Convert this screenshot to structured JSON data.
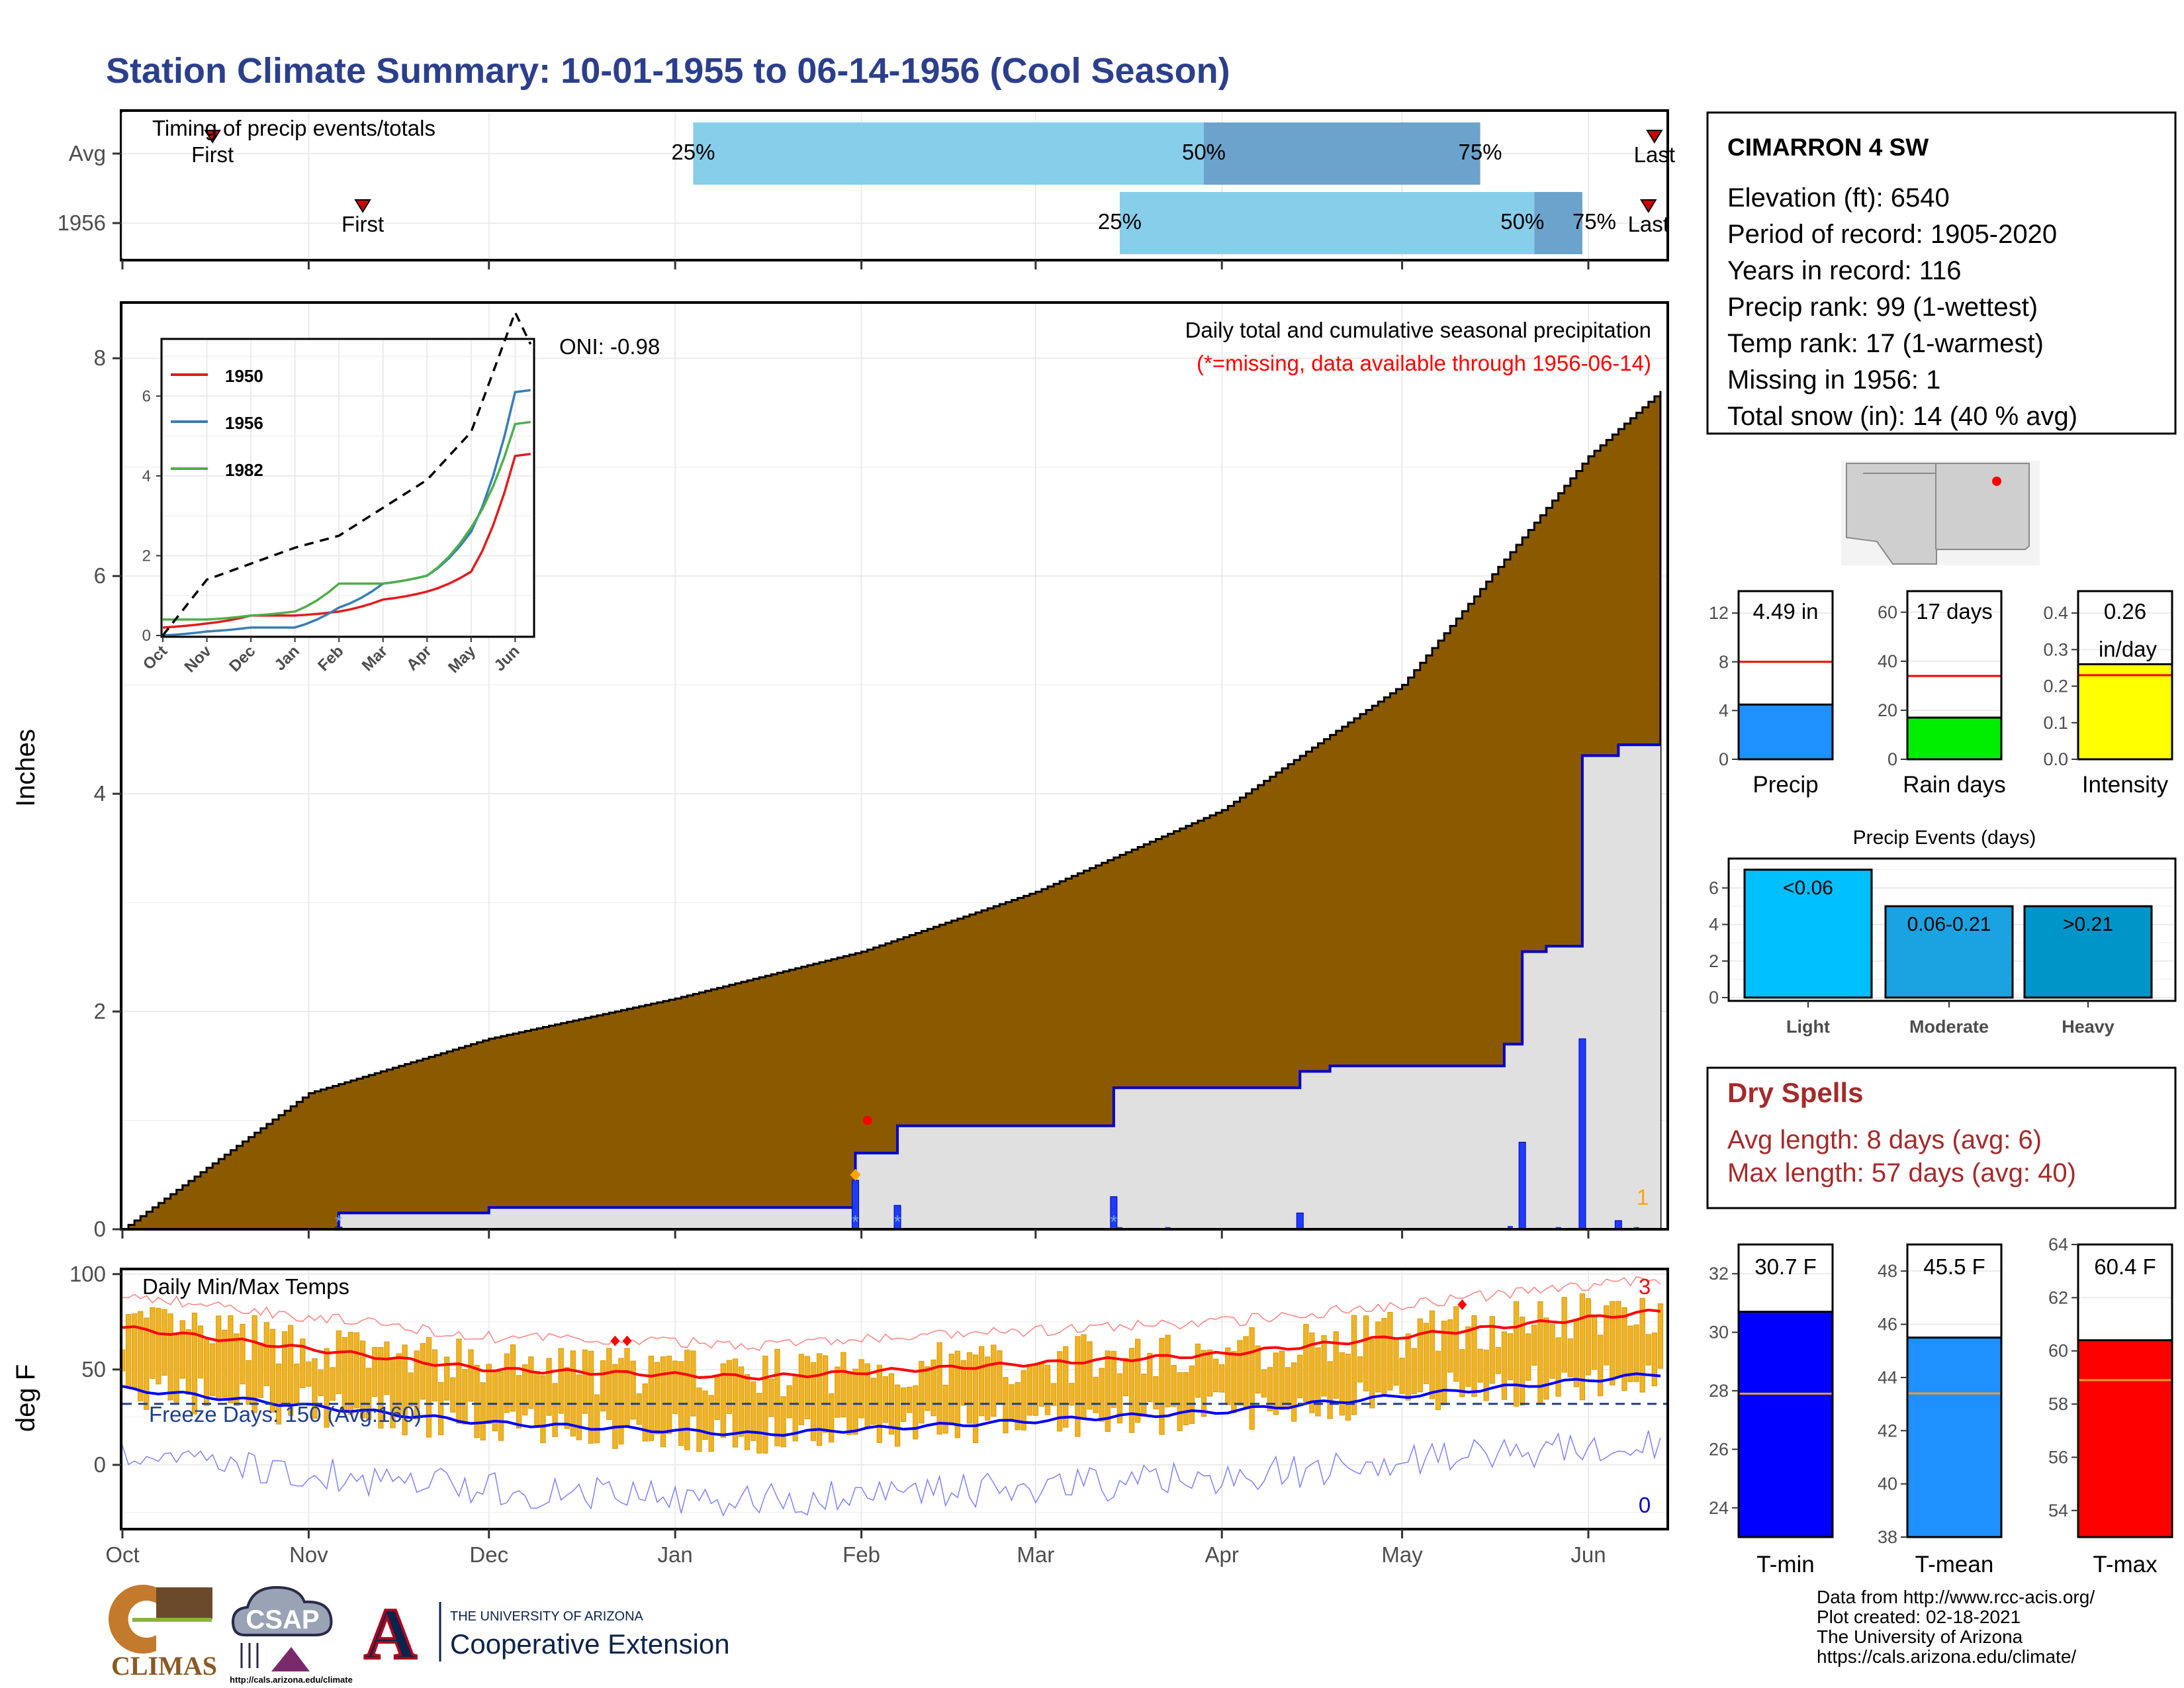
{
  "title": "Station Climate Summary: 10-01-1955 to 06-14-1956 (Cool Season)",
  "timing": {
    "title": "Timing of precip events/totals",
    "rows": [
      {
        "label": "Avg",
        "first_doy": 15,
        "last_doy": 255,
        "p25_doy": 95,
        "p50_doy": 180,
        "p75_doy": 226
      },
      {
        "label": "1956",
        "first_doy": 40,
        "last_doy": 254,
        "p25_doy": 166,
        "p50_doy": 235,
        "p75_doy": 243
      }
    ],
    "first_label": "First",
    "last_label": "Last",
    "pct_labels": [
      "25%",
      "50%",
      "75%"
    ]
  },
  "station": {
    "name": "CIMARRON 4 SW",
    "lines": [
      "Elevation (ft): 6540",
      "Period of record: 1905-2020",
      "Years in record: 116",
      "Precip rank: 99 (1-wettest)",
      "Temp rank: 17 (1-warmest)",
      "Missing in 1956: 1",
      "Total snow (in): 14 (40 % avg)"
    ]
  },
  "precip_panel": {
    "ylabel": "Inches",
    "oni": "ONI: -0.98",
    "legend_title": "Daily total and cumulative seasonal precipitation",
    "legend_note": "(*=missing, data available through 1956-06-14)",
    "missing_count": "1",
    "yticks": [
      0,
      2,
      4,
      6,
      8
    ],
    "ylim": [
      0,
      8.5
    ]
  },
  "inset": {
    "series": [
      {
        "name": "1950",
        "color": "#e41a1c"
      },
      {
        "name": "1956",
        "color": "#377eb8"
      },
      {
        "name": "1982",
        "color": "#4daf4a"
      }
    ],
    "months": [
      "Oct",
      "Nov",
      "Dec",
      "Jan",
      "Feb",
      "Mar",
      "Apr",
      "May",
      "Jun"
    ],
    "yticks": [
      0,
      2,
      4,
      6
    ]
  },
  "temp_panel": {
    "ylabel": "deg F",
    "title": "Daily Min/Max Temps",
    "freeze": "Freeze Days: 150 (Avg:160)",
    "max_count": "3",
    "min_count": "0",
    "yticks": [
      0,
      50,
      100
    ]
  },
  "months": [
    "Oct",
    "Nov",
    "Dec",
    "Jan",
    "Feb",
    "Mar",
    "Apr",
    "May",
    "Jun"
  ],
  "bars": {
    "precip": {
      "value": 4.49,
      "label": "4.49 in",
      "avg": 8,
      "color": "#1e90ff",
      "name": "Precip",
      "yticks": [
        0,
        4,
        8,
        12
      ]
    },
    "raindays": {
      "value": 17,
      "label": "17 days",
      "avg": 34,
      "color": "#00ee00",
      "name": "Rain days",
      "yticks": [
        0,
        20,
        40,
        60
      ]
    },
    "intensity": {
      "value": 0.26,
      "label1": "0.26",
      "label2": "in/day",
      "avg": 0.23,
      "color": "#ffff00",
      "name": "Intensity",
      "yticks": [
        "0.0",
        "0.1",
        "0.2",
        "0.3",
        "0.4"
      ]
    }
  },
  "events": {
    "title": "Precip Events (days)",
    "bars": [
      {
        "name": "Light",
        "value": 7,
        "label": "<0.06",
        "color": "#00bfff"
      },
      {
        "name": "Moderate",
        "value": 5,
        "label": "0.06-0.21",
        "color": "#1aa3e0"
      },
      {
        "name": "Heavy",
        "value": 5,
        "label": ">0.21",
        "color": "#0095c8"
      }
    ],
    "yticks": [
      0,
      2,
      4,
      6
    ]
  },
  "dry_spells": {
    "title": "Dry Spells",
    "avg": "Avg length: 8 days (avg: 6)",
    "max": "Max length: 57 days (avg: 40)"
  },
  "temp_bars": [
    {
      "name": "T-min",
      "value": 30.7,
      "label": "30.7 F",
      "avg": 27.9,
      "color": "#0000ff",
      "ylim": [
        23,
        33
      ],
      "yticks": [
        24,
        26,
        28,
        30,
        32
      ]
    },
    {
      "name": "T-mean",
      "value": 45.5,
      "label": "45.5 F",
      "avg": 43.4,
      "color": "#1e90ff",
      "ylim": [
        38,
        49
      ],
      "yticks": [
        38,
        40,
        42,
        44,
        46,
        48
      ]
    },
    {
      "name": "T-max",
      "value": 60.4,
      "label": "60.4 F",
      "avg": 58.9,
      "color": "#ff0000",
      "ylim": [
        53,
        64
      ],
      "yticks": [
        54,
        56,
        58,
        60,
        62,
        64
      ]
    }
  ],
  "footer": {
    "lines": [
      "Data from http://www.rcc-acis.org/",
      "Plot created: 02-18-2021",
      "The University of Arizona",
      "https://cals.arizona.edu/climate/"
    ],
    "climas": "CLIMAS",
    "csap": "CSAP",
    "csap_url": "http://cals.arizona.edu/climate",
    "ua_small": "THE UNIVERSITY OF ARIZONA",
    "ua_big": "Cooperative Extension",
    "ua_letter": "A"
  },
  "chart_data": [
    {
      "type": "area",
      "name": "",
      "x_range": [
        "1955-10-01",
        "1956-06-14"
      ],
      "cumulative_avg_keypoints": [
        {
          "x": "1955-10-01",
          "y": 0
        },
        {
          "x": "1955-11-01",
          "y": 1.25
        },
        {
          "x": "1955-12-01",
          "y": 1.75
        },
        {
          "x": "1956-01-01",
          "y": 2.12
        },
        {
          "x": "1956-02-01",
          "y": 2.55
        },
        {
          "x": "1956-03-01",
          "y": 3.1
        },
        {
          "x": "1956-04-01",
          "y": 3.85
        },
        {
          "x": "1956-05-01",
          "y": 5.0
        },
        {
          "x": "1956-06-01",
          "y": 7.1
        },
        {
          "x": "1956-06-14",
          "y": 7.75
        }
      ],
      "cumulative_1956_steps": [
        {
          "x": "1955-11-06",
          "y": 0.15
        },
        {
          "x": "1955-12-01",
          "y": 0.2
        },
        {
          "x": "1956-01-31",
          "y": 0.7
        },
        {
          "x": "1956-02-07",
          "y": 0.95
        },
        {
          "x": "1956-03-14",
          "y": 1.3
        },
        {
          "x": "1956-04-14",
          "y": 1.45
        },
        {
          "x": "1956-04-19",
          "y": 1.5
        },
        {
          "x": "1956-05-13",
          "y": 1.5
        },
        {
          "x": "1956-05-18",
          "y": 1.7
        },
        {
          "x": "1956-05-21",
          "y": 2.55
        },
        {
          "x": "1956-05-25",
          "y": 2.6
        },
        {
          "x": "1956-05-31",
          "y": 4.35
        },
        {
          "x": "1956-06-06",
          "y": 4.45
        }
      ],
      "daily_1956_bars": [
        {
          "x": "1955-11-06",
          "y": 0.02
        },
        {
          "x": "1956-01-31",
          "y": 0.45
        },
        {
          "x": "1956-02-07",
          "y": 0.22
        },
        {
          "x": "1956-03-14",
          "y": 0.3
        },
        {
          "x": "1956-04-14",
          "y": 0.15
        },
        {
          "x": "1956-05-21",
          "y": 0.8
        },
        {
          "x": "1956-05-31",
          "y": 1.75
        },
        {
          "x": "1956-06-06",
          "y": 0.08
        }
      ],
      "ylabel": "Inches",
      "ylim": [
        0,
        8.5
      ]
    },
    {
      "type": "line",
      "name": "",
      "x_range": [
        "1955-10-01",
        "1956-06-14"
      ],
      "normal_max_keypoints": [
        {
          "x": "1955-10-01",
          "y": 72
        },
        {
          "x": "1955-12-01",
          "y": 50
        },
        {
          "x": "1956-01-15",
          "y": 46
        },
        {
          "x": "1956-04-01",
          "y": 58
        },
        {
          "x": "1956-06-14",
          "y": 81
        }
      ],
      "normal_min_keypoints": [
        {
          "x": "1955-10-01",
          "y": 40
        },
        {
          "x": "1955-12-01",
          "y": 22
        },
        {
          "x": "1956-01-15",
          "y": 16
        },
        {
          "x": "1956-04-01",
          "y": 28
        },
        {
          "x": "1956-06-14",
          "y": 48
        }
      ],
      "freeze_line": 32,
      "ylabel": "deg F",
      "ylim": [
        -33,
        102
      ]
    },
    {
      "type": "line",
      "name": "",
      "x": [
        "Oct",
        "Nov",
        "Dec",
        "Jan",
        "Feb",
        "Mar",
        "Apr",
        "May",
        "Jun"
      ],
      "series": [
        {
          "name": "1950",
          "values": [
            0.2,
            0.3,
            0.5,
            0.5,
            0.6,
            0.9,
            1.1,
            1.6,
            4.5
          ]
        },
        {
          "name": "1956",
          "values": [
            0.0,
            0.1,
            0.2,
            0.2,
            0.7,
            1.3,
            1.5,
            2.6,
            6.1
          ]
        },
        {
          "name": "1982",
          "values": [
            0.4,
            0.4,
            0.5,
            0.6,
            1.3,
            1.3,
            1.5,
            2.7,
            5.3
          ]
        },
        {
          "name": "",
          "values": [
            0.0,
            1.4,
            1.8,
            2.2,
            2.5,
            3.2,
            3.9,
            5.1,
            8.1
          ]
        }
      ],
      "ylim": [
        0,
        8
      ]
    },
    {
      "type": "bar",
      "name": "",
      "categories": [
        "Precip",
        "Rain days",
        "Intensity",
        "T-min",
        "T-mean",
        "T-max"
      ],
      "values": [
        4.49,
        17,
        0.26,
        30.7,
        45.5,
        60.4
      ]
    },
    {
      "type": "bar",
      "name": "",
      "title": "Precip Events (days)",
      "categories": [
        "Light",
        "Moderate",
        "Heavy"
      ],
      "values": [
        7,
        5,
        5
      ],
      "ylim": [
        0,
        7.5
      ]
    }
  ]
}
